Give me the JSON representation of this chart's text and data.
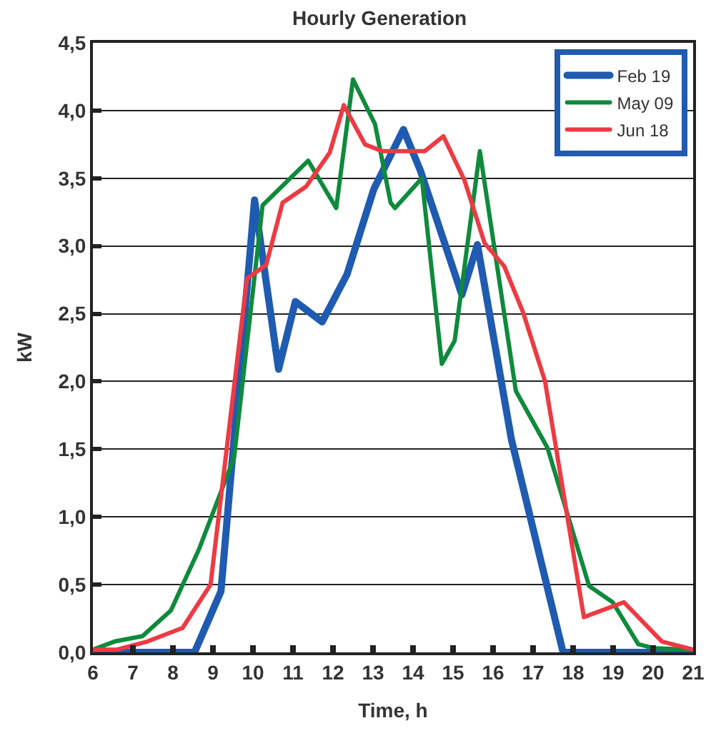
{
  "chart_data": {
    "type": "line",
    "title": "Hourly Generation",
    "xlabel": "Time, h",
    "ylabel": "kW",
    "xlim": [
      6,
      21
    ],
    "xticks": [
      6,
      7,
      8,
      9,
      10,
      11,
      12,
      13,
      14,
      15,
      16,
      17,
      18,
      19,
      20,
      21
    ],
    "ylim": [
      0,
      4.5
    ],
    "yticks": [
      {
        "value": 0,
        "label": "0,0"
      },
      {
        "value": 0.5,
        "label": "0,5"
      },
      {
        "value": 1,
        "label": "1,0"
      },
      {
        "value": 1.5,
        "label": "1,5"
      },
      {
        "value": 2,
        "label": "2,0"
      },
      {
        "value": 2.5,
        "label": "2,5"
      },
      {
        "value": 3,
        "label": "3,0"
      },
      {
        "value": 3.5,
        "label": "3,5"
      },
      {
        "value": 4,
        "label": "4,0"
      },
      {
        "value": 4.5,
        "label": "4,5"
      }
    ],
    "grid": "y",
    "legend": "top right",
    "marker": "none",
    "line_style": "solid",
    "series": [
      {
        "name": "Feb 19",
        "color": "#1f5bb0",
        "x": [
          6,
          8.54,
          9.2,
          10.04,
          10.64,
          11.06,
          11.73,
          12.35,
          13.02,
          13.76,
          14.18,
          15.22,
          15.61,
          16.46,
          17.75,
          21
        ],
        "values": [
          0,
          0,
          0.45,
          3.34,
          2.09,
          2.59,
          2.44,
          2.79,
          3.42,
          3.86,
          3.56,
          2.64,
          3.01,
          1.57,
          0,
          0
        ]
      },
      {
        "name": "May 09",
        "color": "#0f8a3c",
        "x": [
          6,
          6.54,
          7.24,
          7.95,
          8.65,
          9.53,
          10.24,
          11.38,
          12.08,
          12.5,
          13.05,
          13.44,
          13.55,
          14.22,
          14.72,
          15.04,
          15.67,
          16.57,
          17.36,
          18.4,
          18.99,
          19.63,
          20.04,
          21
        ],
        "values": [
          0.02,
          0.08,
          0.12,
          0.31,
          0.76,
          1.44,
          3.3,
          3.63,
          3.28,
          4.23,
          3.9,
          3.32,
          3.28,
          3.5,
          2.13,
          2.3,
          3.7,
          1.93,
          1.51,
          0.49,
          0.37,
          0.06,
          0.03,
          0.02
        ]
      },
      {
        "name": "Jun 18",
        "color": "#ee3a43",
        "x": [
          6,
          6.6,
          7.36,
          8.24,
          8.94,
          9.85,
          10.33,
          10.74,
          11.33,
          11.92,
          12.27,
          12.8,
          13.23,
          14.29,
          14.76,
          15.28,
          15.79,
          16.28,
          16.75,
          17.3,
          18.27,
          19.27,
          20.22,
          21
        ],
        "values": [
          0.02,
          0.02,
          0.08,
          0.18,
          0.5,
          2.76,
          2.86,
          3.32,
          3.44,
          3.69,
          4.04,
          3.75,
          3.7,
          3.7,
          3.81,
          3.49,
          3.02,
          2.85,
          2.51,
          2.0,
          0.26,
          0.37,
          0.08,
          0.02
        ]
      }
    ]
  }
}
